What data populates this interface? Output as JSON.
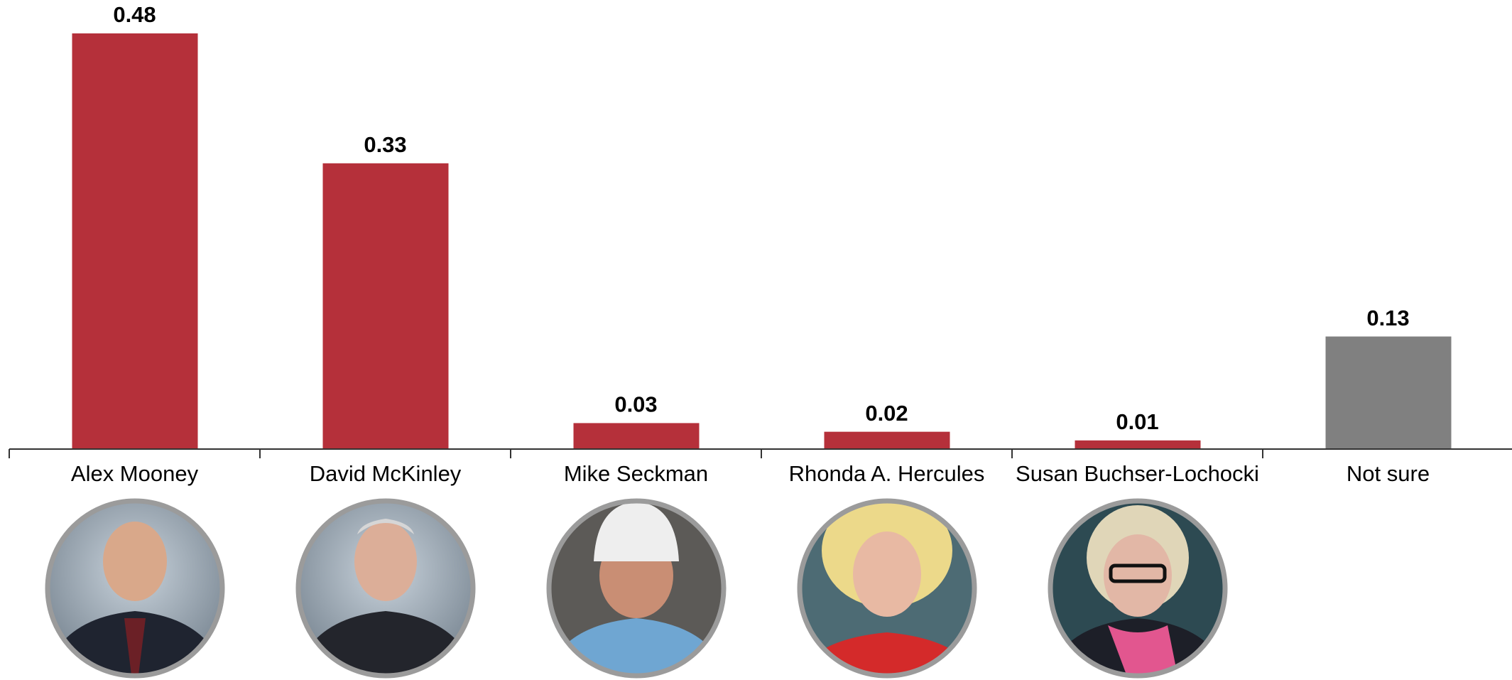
{
  "chart_data": {
    "type": "bar",
    "categories": [
      "Alex Mooney",
      "David McKinley",
      "Mike Seckman",
      "Rhonda A. Hercules",
      "Susan Buchser-Lochocki",
      "Not sure"
    ],
    "values": [
      0.48,
      0.33,
      0.03,
      0.02,
      0.01,
      0.13
    ],
    "colors": [
      "#b5303a",
      "#b5303a",
      "#b5303a",
      "#b5303a",
      "#b5303a",
      "#808080"
    ]
  }
}
